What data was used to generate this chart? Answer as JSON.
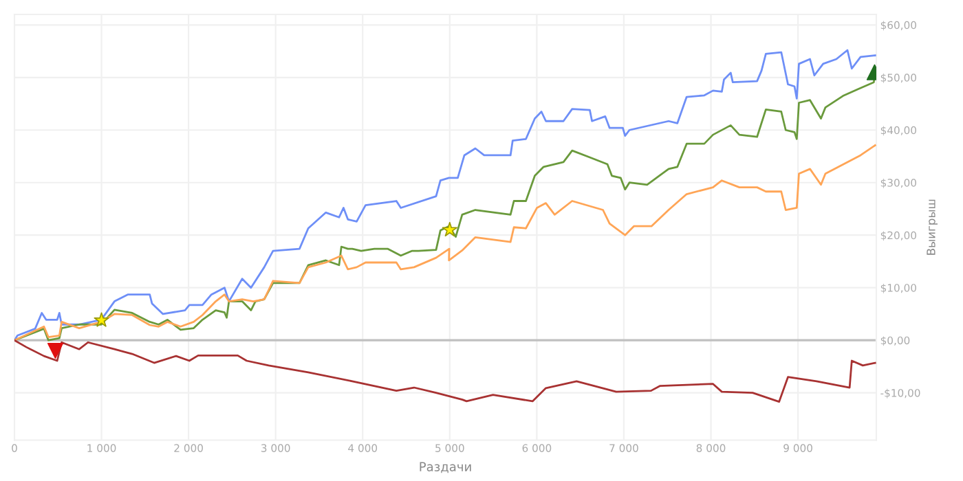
{
  "chart_data": {
    "type": "line",
    "xlabel": "Раздачи",
    "ylabel": "Выигрыш",
    "xlim": [
      0,
      9900
    ],
    "ylim": [
      -19,
      62
    ],
    "xticks": [
      0,
      {
        "value": 1000,
        "label": "1 000"
      },
      {
        "value": 2000,
        "label": "2 000"
      },
      {
        "value": 3000,
        "label": "3 000"
      },
      {
        "value": 4000,
        "label": "4 000"
      },
      {
        "value": 5000,
        "label": "5 000"
      },
      {
        "value": 6000,
        "label": "6 000"
      },
      {
        "value": 7000,
        "label": "7 000"
      },
      {
        "value": 8000,
        "label": "8 000"
      },
      {
        "value": 9000,
        "label": "9 000"
      }
    ],
    "yticks": [
      {
        "value": -10,
        "label": "-$10,00"
      },
      {
        "value": 0,
        "label": "$0,00"
      },
      {
        "value": 10,
        "label": "$10,00"
      },
      {
        "value": 20,
        "label": "$20,00"
      },
      {
        "value": 30,
        "label": "$30,00"
      },
      {
        "value": 40,
        "label": "$40,00"
      },
      {
        "value": 50,
        "label": "$50,00"
      },
      {
        "value": 60,
        "label": "$60,00"
      }
    ],
    "grid": true,
    "legend": false,
    "ref_lines": [
      {
        "axis": "y",
        "value": 0,
        "color": "#c0c0c0"
      }
    ],
    "series": [
      {
        "color": "#6e8ff7",
        "x": [
          0,
          35,
          238,
          314,
          364,
          491,
          516,
          542,
          744,
          997,
          1149,
          1301,
          1554,
          1580,
          1706,
          1959,
          2009,
          2160,
          2262,
          2413,
          2464,
          2616,
          2717,
          2869,
          2970,
          3274,
          3375,
          3577,
          3729,
          3780,
          3830,
          3931,
          4033,
          4387,
          4438,
          4843,
          4893,
          4991,
          5092,
          5168,
          5294,
          5395,
          5698,
          5723,
          5875,
          5977,
          6053,
          6104,
          6306,
          6406,
          6609,
          6634,
          6786,
          6836,
          6988,
          7014,
          7064,
          7514,
          7615,
          7721,
          7924,
          8024,
          8125,
          8150,
          8227,
          8251,
          8530,
          8581,
          8631,
          8808,
          8885,
          8960,
          8986,
          9011,
          9138,
          9188,
          9289,
          9441,
          9568,
          9618,
          9719,
          9886
        ],
        "values": [
          0,
          0.9,
          2.2,
          5.2,
          3.9,
          3.9,
          5.2,
          3,
          3,
          3.9,
          7.4,
          8.7,
          8.7,
          7,
          5,
          5.7,
          6.7,
          6.7,
          8.7,
          10,
          7.4,
          11.7,
          10,
          13.9,
          17,
          17.4,
          21.3,
          24.3,
          23.4,
          25.2,
          23,
          22.6,
          25.7,
          26.5,
          25.2,
          27.4,
          30.4,
          30.9,
          30.9,
          35.2,
          36.5,
          35.2,
          35.2,
          38,
          38.3,
          42.2,
          43.5,
          41.7,
          41.7,
          44,
          43.8,
          41.7,
          42.6,
          40.4,
          40.4,
          38.9,
          40,
          41.7,
          41.3,
          46.3,
          46.6,
          47.5,
          47.3,
          49.6,
          50.9,
          49.1,
          49.3,
          51.3,
          54.5,
          54.8,
          48.7,
          48.3,
          46,
          52.6,
          53.5,
          50.4,
          52.6,
          53.5,
          55.2,
          51.7,
          53.9,
          54.2
        ]
      },
      {
        "color": "#6a9a3c",
        "x": [
          0,
          339,
          390,
          516,
          542,
          744,
          997,
          1149,
          1352,
          1554,
          1656,
          1757,
          1908,
          2059,
          2160,
          2312,
          2413,
          2438,
          2464,
          2616,
          2717,
          2768,
          2869,
          2970,
          3274,
          3375,
          3577,
          3729,
          3755,
          3830,
          3881,
          3982,
          4134,
          4286,
          4438,
          4564,
          4640,
          4843,
          4893,
          4991,
          5069,
          5143,
          5294,
          5698,
          5737,
          5875,
          5977,
          6078,
          6306,
          6406,
          6609,
          6811,
          6862,
          6963,
          7014,
          7064,
          7267,
          7514,
          7615,
          7721,
          7924,
          8024,
          8227,
          8327,
          8530,
          8631,
          8808,
          8859,
          8960,
          8986,
          9011,
          9138,
          9264,
          9315,
          9517,
          9694,
          9871,
          9886
        ],
        "values": [
          0,
          2.2,
          0,
          0.4,
          2.3,
          3,
          3,
          5.8,
          5.2,
          3.5,
          3,
          3.9,
          2,
          2.3,
          3.9,
          5.7,
          5.3,
          4.3,
          7.4,
          7.4,
          5.7,
          7.4,
          7.8,
          10.9,
          10.9,
          14.3,
          15.2,
          14.3,
          17.8,
          17.4,
          17.4,
          17,
          17.4,
          17.4,
          16.1,
          17,
          17,
          17.2,
          20.9,
          21.7,
          19.7,
          23.9,
          24.8,
          23.9,
          26.5,
          26.5,
          31.3,
          33,
          33.9,
          36.1,
          34.8,
          33.5,
          31.3,
          30.9,
          28.7,
          30,
          29.6,
          32.6,
          33,
          37.4,
          37.4,
          39.1,
          40.9,
          39.1,
          38.7,
          43.9,
          43.5,
          40,
          39.6,
          38.3,
          45.2,
          45.7,
          42.2,
          44.3,
          46.5,
          47.8,
          49.1,
          51
        ]
      },
      {
        "color": "#ffa556",
        "x": [
          0,
          339,
          390,
          516,
          542,
          744,
          997,
          1149,
          1352,
          1554,
          1656,
          1757,
          1908,
          2059,
          2160,
          2312,
          2413,
          2464,
          2616,
          2743,
          2869,
          2970,
          3274,
          3375,
          3577,
          3755,
          3830,
          3931,
          4033,
          4387,
          4438,
          4590,
          4843,
          4994,
          4991,
          5143,
          5294,
          5698,
          5737,
          5875,
          6002,
          6104,
          6205,
          6406,
          6760,
          6836,
          7014,
          7115,
          7317,
          7514,
          7721,
          8024,
          8125,
          8327,
          8530,
          8631,
          8808,
          8859,
          8986,
          9011,
          9138,
          9264,
          9315,
          9568,
          9719,
          9886
        ],
        "values": [
          0,
          2.6,
          0.6,
          0.9,
          3.5,
          2.3,
          3.5,
          5,
          4.8,
          2.9,
          2.6,
          3.5,
          2.6,
          3.5,
          4.8,
          7.4,
          8.7,
          7.4,
          7.8,
          7.4,
          7.8,
          11.3,
          10.9,
          13.9,
          14.8,
          16.1,
          13.5,
          13.9,
          14.8,
          14.8,
          13.5,
          13.9,
          15.7,
          17.4,
          15.2,
          17.1,
          19.6,
          18.7,
          21.5,
          21.3,
          25.2,
          26.1,
          23.9,
          26.5,
          24.8,
          22.2,
          20,
          21.7,
          21.7,
          24.8,
          27.8,
          29.1,
          30.4,
          29.1,
          29.1,
          28.3,
          28.3,
          24.8,
          25.2,
          31.7,
          32.6,
          29.6,
          31.7,
          33.9,
          35.2,
          37.1
        ]
      },
      {
        "color": "#a83232",
        "x": [
          0,
          136,
          339,
          491,
          542,
          744,
          845,
          1149,
          1352,
          1605,
          1857,
          2009,
          2110,
          2565,
          2667,
          2920,
          3375,
          3881,
          4387,
          4590,
          4843,
          5146,
          5193,
          5497,
          5951,
          6104,
          6457,
          6912,
          7312,
          7413,
          8024,
          8125,
          8479,
          8783,
          8885,
          9214,
          9593,
          9618,
          9745,
          9886
        ],
        "values": [
          0,
          -1.3,
          -3,
          -3.9,
          -0.4,
          -1.7,
          -0.4,
          -1.7,
          -2.6,
          -4.3,
          -3,
          -3.9,
          -2.9,
          -2.9,
          -3.9,
          -4.8,
          -6.1,
          -7.8,
          -9.6,
          -9,
          -10,
          -11.3,
          -11.6,
          -10.4,
          -11.6,
          -9.1,
          -7.8,
          -9.8,
          -9.6,
          -8.7,
          -8.3,
          -9.8,
          -10,
          -11.7,
          -7,
          -7.8,
          -9,
          -3.9,
          -4.8,
          -4.3
        ]
      },
      {
        "type": "scatter",
        "marker": "star",
        "color": "#ffee00",
        "x": [
          1000,
          5000
        ],
        "values": [
          3.8,
          21
        ]
      },
      {
        "type": "scatter",
        "marker": "triangle_down",
        "color": "#e01010",
        "x": [
          470
        ],
        "values": [
          -2
        ]
      },
      {
        "type": "scatter",
        "marker": "triangle",
        "color": "#1f6e1f",
        "x": [
          9880
        ],
        "values": [
          51
        ]
      }
    ]
  }
}
